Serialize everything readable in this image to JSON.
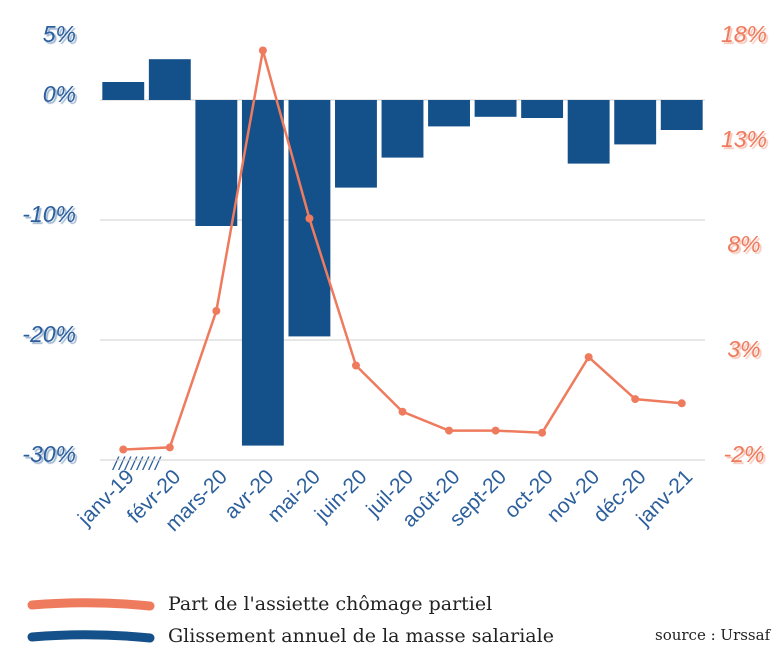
{
  "chart_data": {
    "type": "bar",
    "categories": [
      "janv-19",
      "févr-20",
      "mars-20",
      "avr-20",
      "mai-20",
      "juin-20",
      "juil-20",
      "août-20",
      "sept-20",
      "oct-20",
      "nov-20",
      "déc-20",
      "janv-21"
    ],
    "series": [
      {
        "name": "Part de l'assiette chômage partiel",
        "type": "line",
        "axis": "y2",
        "color": "#ef7b5e",
        "values": [
          -1.5,
          -1.4,
          5.1,
          17.5,
          9.5,
          2.5,
          0.3,
          -0.6,
          -0.6,
          -0.7,
          2.9,
          0.9,
          0.7
        ]
      },
      {
        "name": "Glissement annuel de la masse salariale",
        "type": "bar",
        "color": "#14508a",
        "values": [
          1.5,
          3.4,
          -10.5,
          -28.8,
          -19.7,
          -7.3,
          -4.8,
          -2.2,
          -1.4,
          -1.5,
          -5.3,
          -3.7,
          -2.5
        ]
      }
    ],
    "ylim": [
      -30,
      5
    ],
    "yticks": [
      {
        "value": 5,
        "label": "5%"
      },
      {
        "value": 0,
        "label": "0%"
      },
      {
        "value": -10,
        "label": "-10%"
      },
      {
        "value": -20,
        "label": "-20%"
      },
      {
        "value": -30,
        "label": "-30%"
      }
    ],
    "y2lim": [
      -2,
      18
    ],
    "y2ticks": [
      {
        "value": 18,
        "label": "18%"
      },
      {
        "value": 13,
        "label": "13%"
      },
      {
        "value": 8,
        "label": "8%"
      },
      {
        "value": 3,
        "label": "3%"
      },
      {
        "value": -2,
        "label": "-2%"
      }
    ],
    "grid": true,
    "annotation": "////////",
    "source": "source : Urssaf"
  }
}
